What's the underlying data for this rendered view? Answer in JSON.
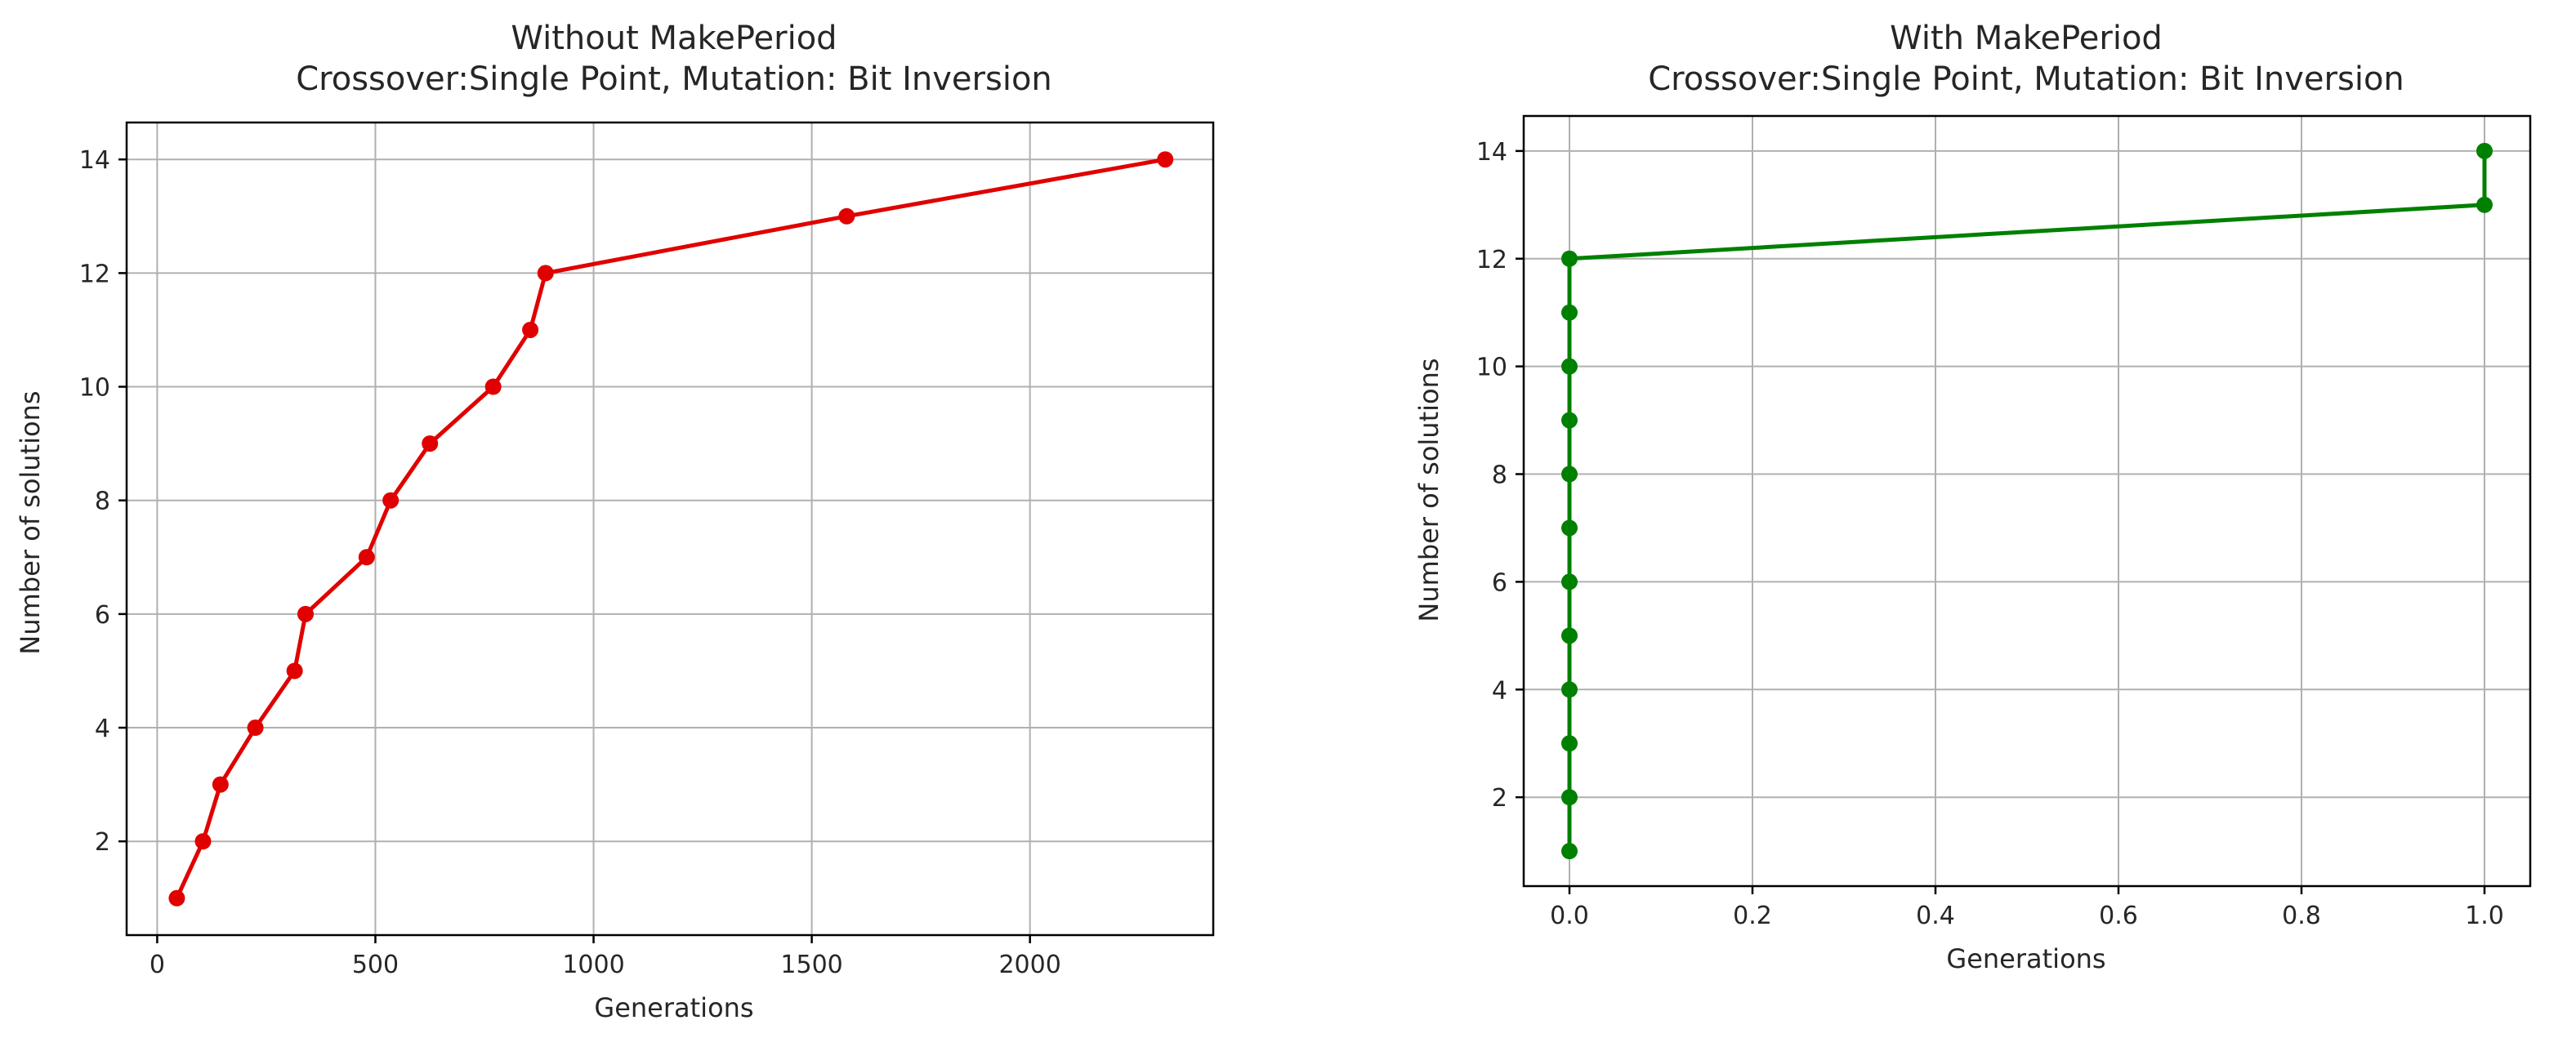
{
  "chart_data": [
    {
      "type": "line",
      "title": "Without MakePeriod",
      "subtitle": "Crossover:Single Point, Mutation: Bit Inversion",
      "xlabel": "Generations",
      "ylabel": "Number of solutions",
      "color": "#e00000",
      "marker": "circle",
      "grid": true,
      "xlim": [
        -70,
        2420
      ],
      "ylim": [
        0.35,
        14.65
      ],
      "xticks": [
        0,
        500,
        1000,
        1500,
        2000
      ],
      "xtick_labels": [
        "0",
        "500",
        "1000",
        "1500",
        "2000"
      ],
      "yticks": [
        2,
        4,
        6,
        8,
        10,
        12,
        14
      ],
      "ytick_labels": [
        "2",
        "4",
        "6",
        "8",
        "10",
        "12",
        "14"
      ],
      "series": [
        {
          "name": "solutions",
          "x": [
            45,
            105,
            145,
            225,
            315,
            340,
            480,
            535,
            625,
            770,
            855,
            890,
            1580,
            2310
          ],
          "y": [
            1,
            2,
            3,
            4,
            5,
            6,
            7,
            8,
            9,
            10,
            11,
            12,
            13,
            14
          ]
        }
      ]
    },
    {
      "type": "line",
      "title": "With MakePeriod",
      "subtitle": "Crossover:Single Point, Mutation: Bit Inversion",
      "xlabel": "Generations",
      "ylabel": "Number of solutions",
      "color": "#008000",
      "marker": "circle",
      "grid": true,
      "xlim": [
        -0.05,
        1.05
      ],
      "ylim": [
        0.35,
        14.65
      ],
      "xticks": [
        0.0,
        0.2,
        0.4,
        0.6,
        0.8,
        1.0
      ],
      "xtick_labels": [
        "0.0",
        "0.2",
        "0.4",
        "0.6",
        "0.8",
        "1.0"
      ],
      "yticks": [
        2,
        4,
        6,
        8,
        10,
        12,
        14
      ],
      "ytick_labels": [
        "2",
        "4",
        "6",
        "8",
        "10",
        "12",
        "14"
      ],
      "series": [
        {
          "name": "solutions",
          "x": [
            0,
            0,
            0,
            0,
            0,
            0,
            0,
            0,
            0,
            0,
            0,
            0,
            1,
            1
          ],
          "y": [
            1,
            2,
            3,
            4,
            5,
            6,
            7,
            8,
            9,
            10,
            11,
            12,
            13,
            14
          ]
        }
      ]
    }
  ]
}
